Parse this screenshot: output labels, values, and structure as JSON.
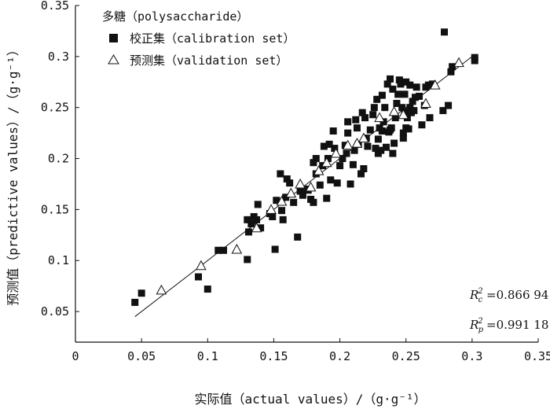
{
  "chart_data": {
    "type": "scatter",
    "title": "",
    "xlabel": "实际值（actual values）/（g·g⁻¹）",
    "ylabel": "预测值（predictive values）/（g·g⁻¹）",
    "xlim": [
      0,
      0.35
    ],
    "ylim": [
      0.02,
      0.35
    ],
    "x_ticks": [
      "0",
      "0.05",
      "0.1",
      "0.15",
      "0.2",
      "0.25",
      "0.3",
      "0.35"
    ],
    "y_ticks": [
      "0.05",
      "0.1",
      "0.15",
      "0.2",
      "0.25",
      "0.3",
      "0.35"
    ],
    "legend": {
      "title": "多糖（polysaccharide）",
      "position": "top-left",
      "calibration_label": "校正集（calibration set）",
      "validation_label": "预测集（validation set）"
    },
    "stats": {
      "rc2": "=0.866 94",
      "rp2": "=0.991 18"
    },
    "fit_line": {
      "x": [
        0.045,
        0.302
      ],
      "y": [
        0.045,
        0.302
      ]
    },
    "series": [
      {
        "name": "校正集（calibration set）",
        "marker": "filled-square",
        "points": [
          [
            0.045,
            0.059
          ],
          [
            0.05,
            0.068
          ],
          [
            0.093,
            0.084
          ],
          [
            0.1,
            0.072
          ],
          [
            0.108,
            0.11
          ],
          [
            0.112,
            0.11
          ],
          [
            0.13,
            0.101
          ],
          [
            0.13,
            0.14
          ],
          [
            0.131,
            0.128
          ],
          [
            0.133,
            0.136
          ],
          [
            0.135,
            0.143
          ],
          [
            0.137,
            0.14
          ],
          [
            0.138,
            0.155
          ],
          [
            0.14,
            0.132
          ],
          [
            0.147,
            0.146
          ],
          [
            0.149,
            0.143
          ],
          [
            0.151,
            0.111
          ],
          [
            0.152,
            0.159
          ],
          [
            0.155,
            0.185
          ],
          [
            0.156,
            0.149
          ],
          [
            0.157,
            0.14
          ],
          [
            0.159,
            0.162
          ],
          [
            0.16,
            0.18
          ],
          [
            0.162,
            0.176
          ],
          [
            0.165,
            0.157
          ],
          [
            0.168,
            0.123
          ],
          [
            0.17,
            0.168
          ],
          [
            0.172,
            0.164
          ],
          [
            0.174,
            0.17
          ],
          [
            0.176,
            0.169
          ],
          [
            0.178,
            0.16
          ],
          [
            0.18,
            0.157
          ],
          [
            0.18,
            0.196
          ],
          [
            0.182,
            0.2
          ],
          [
            0.182,
            0.185
          ],
          [
            0.185,
            0.174
          ],
          [
            0.187,
            0.193
          ],
          [
            0.188,
            0.212
          ],
          [
            0.19,
            0.161
          ],
          [
            0.191,
            0.2
          ],
          [
            0.192,
            0.214
          ],
          [
            0.193,
            0.179
          ],
          [
            0.195,
            0.227
          ],
          [
            0.196,
            0.21
          ],
          [
            0.198,
            0.176
          ],
          [
            0.2,
            0.193
          ],
          [
            0.202,
            0.2
          ],
          [
            0.204,
            0.213
          ],
          [
            0.205,
            0.205
          ],
          [
            0.206,
            0.225
          ],
          [
            0.206,
            0.236
          ],
          [
            0.208,
            0.175
          ],
          [
            0.21,
            0.194
          ],
          [
            0.211,
            0.208
          ],
          [
            0.212,
            0.238
          ],
          [
            0.213,
            0.23
          ],
          [
            0.214,
            0.214
          ],
          [
            0.216,
            0.185
          ],
          [
            0.217,
            0.245
          ],
          [
            0.218,
            0.19
          ],
          [
            0.219,
            0.24
          ],
          [
            0.22,
            0.22
          ],
          [
            0.221,
            0.212
          ],
          [
            0.223,
            0.228
          ],
          [
            0.225,
            0.243
          ],
          [
            0.226,
            0.25
          ],
          [
            0.227,
            0.21
          ],
          [
            0.228,
            0.258
          ],
          [
            0.229,
            0.205
          ],
          [
            0.229,
            0.219
          ],
          [
            0.23,
            0.23
          ],
          [
            0.231,
            0.208
          ],
          [
            0.232,
            0.227
          ],
          [
            0.232,
            0.262
          ],
          [
            0.233,
            0.236
          ],
          [
            0.234,
            0.25
          ],
          [
            0.235,
            0.211
          ],
          [
            0.236,
            0.273
          ],
          [
            0.237,
            0.226
          ],
          [
            0.238,
            0.228
          ],
          [
            0.238,
            0.278
          ],
          [
            0.239,
            0.23
          ],
          [
            0.24,
            0.205
          ],
          [
            0.24,
            0.268
          ],
          [
            0.241,
            0.215
          ],
          [
            0.242,
            0.24
          ],
          [
            0.243,
            0.254
          ],
          [
            0.244,
            0.263
          ],
          [
            0.245,
            0.277
          ],
          [
            0.246,
            0.273
          ],
          [
            0.247,
            0.25
          ],
          [
            0.248,
            0.225
          ],
          [
            0.248,
            0.22
          ],
          [
            0.249,
            0.246
          ],
          [
            0.249,
            0.263
          ],
          [
            0.25,
            0.275
          ],
          [
            0.25,
            0.23
          ],
          [
            0.251,
            0.24
          ],
          [
            0.252,
            0.229
          ],
          [
            0.253,
            0.272
          ],
          [
            0.253,
            0.25
          ],
          [
            0.254,
            0.245
          ],
          [
            0.255,
            0.256
          ],
          [
            0.256,
            0.247
          ],
          [
            0.257,
            0.26
          ],
          [
            0.258,
            0.27
          ],
          [
            0.26,
            0.261
          ],
          [
            0.262,
            0.233
          ],
          [
            0.264,
            0.252
          ],
          [
            0.265,
            0.27
          ],
          [
            0.267,
            0.272
          ],
          [
            0.268,
            0.24
          ],
          [
            0.27,
            0.273
          ],
          [
            0.278,
            0.247
          ],
          [
            0.279,
            0.324
          ],
          [
            0.282,
            0.252
          ],
          [
            0.284,
            0.285
          ],
          [
            0.285,
            0.29
          ],
          [
            0.302,
            0.296
          ],
          [
            0.302,
            0.299
          ]
        ]
      },
      {
        "name": "预测集（validation set）",
        "marker": "open-triangle",
        "points": [
          [
            0.065,
            0.071
          ],
          [
            0.095,
            0.095
          ],
          [
            0.122,
            0.111
          ],
          [
            0.137,
            0.132
          ],
          [
            0.148,
            0.15
          ],
          [
            0.156,
            0.158
          ],
          [
            0.163,
            0.166
          ],
          [
            0.17,
            0.175
          ],
          [
            0.178,
            0.172
          ],
          [
            0.184,
            0.188
          ],
          [
            0.19,
            0.196
          ],
          [
            0.197,
            0.205
          ],
          [
            0.206,
            0.213
          ],
          [
            0.213,
            0.215
          ],
          [
            0.218,
            0.22
          ],
          [
            0.23,
            0.24
          ],
          [
            0.241,
            0.246
          ],
          [
            0.248,
            0.243
          ],
          [
            0.265,
            0.254
          ],
          [
            0.272,
            0.272
          ],
          [
            0.29,
            0.294
          ]
        ]
      }
    ]
  }
}
